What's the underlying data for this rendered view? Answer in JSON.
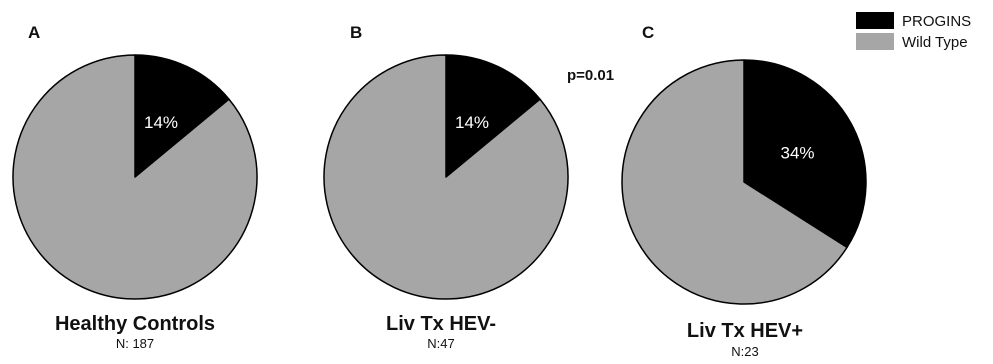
{
  "colors": {
    "progins": "#000000",
    "wild_type": "#a6a6a6",
    "outline": "#000000",
    "slice_label": "#ffffff"
  },
  "legend": {
    "placement": "top-right",
    "items": [
      {
        "label": "PROGINS",
        "color": "#000000"
      },
      {
        "label": "Wild Type",
        "color": "#a6a6a6"
      }
    ]
  },
  "annotation": {
    "p_value": "p=0.01"
  },
  "chart_data": [
    {
      "type": "pie",
      "panel": "A",
      "title": "Healthy Controls",
      "subtitle": "N: 187",
      "slices": [
        {
          "label": "PROGINS",
          "value": 14,
          "display": "14%"
        },
        {
          "label": "Wild Type",
          "value": 86,
          "display": ""
        }
      ]
    },
    {
      "type": "pie",
      "panel": "B",
      "title": "Liv Tx HEV-",
      "subtitle": "N:47",
      "slices": [
        {
          "label": "PROGINS",
          "value": 14,
          "display": "14%"
        },
        {
          "label": "Wild Type",
          "value": 86,
          "display": ""
        }
      ]
    },
    {
      "type": "pie",
      "panel": "C",
      "title": "Liv Tx HEV+",
      "subtitle": "N:23",
      "slices": [
        {
          "label": "PROGINS",
          "value": 34,
          "display": "34%"
        },
        {
          "label": "Wild Type",
          "value": 66,
          "display": ""
        }
      ]
    }
  ]
}
